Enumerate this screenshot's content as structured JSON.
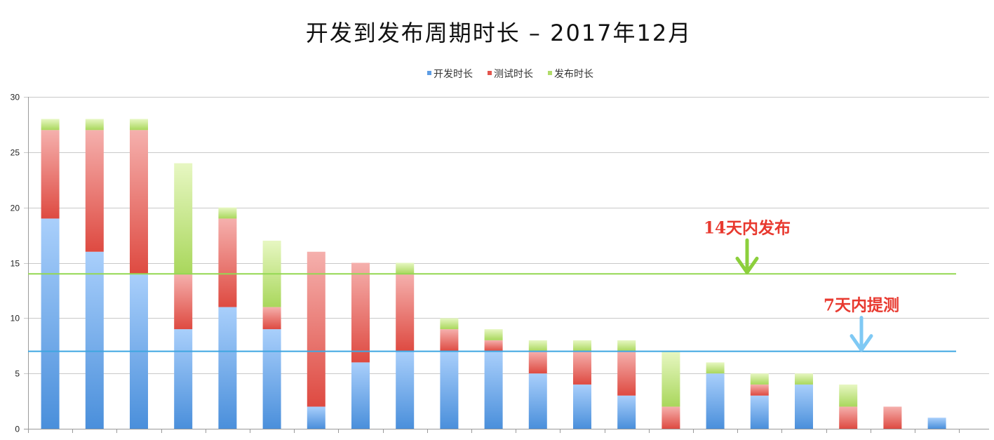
{
  "chart_data": {
    "type": "bar",
    "stacked": true,
    "title": "开发到发布周期时长 – 2017年12月",
    "legend_position": "top-center",
    "grid": true,
    "ylim": [
      0,
      30
    ],
    "yticks": [
      0,
      5,
      10,
      15,
      20,
      25,
      30
    ],
    "series": [
      {
        "name": "开发时长",
        "values": [
          19,
          16,
          14,
          9,
          11,
          9,
          2,
          6,
          7,
          7,
          7,
          5,
          4,
          3,
          0,
          5,
          3,
          4,
          0,
          0,
          1
        ],
        "color": "#5d9de4",
        "gradient": [
          "#a9cffb",
          "#4a8fdb"
        ]
      },
      {
        "name": "测试时长",
        "values": [
          8,
          11,
          13,
          5,
          8,
          2,
          14,
          9,
          7,
          2,
          1,
          2,
          3,
          4,
          2,
          0,
          1,
          0,
          2,
          2,
          0
        ],
        "color": "#e3554d",
        "gradient": [
          "#f5b0ad",
          "#de4a41"
        ]
      },
      {
        "name": "发布时长",
        "values": [
          1,
          1,
          1,
          10,
          1,
          6,
          0,
          0,
          1,
          1,
          1,
          1,
          1,
          1,
          5,
          1,
          1,
          1,
          2,
          0,
          0
        ],
        "color": "#b1dc6a",
        "gradient": [
          "#e7f7c2",
          "#a9d75c"
        ]
      }
    ],
    "reference_lines": [
      {
        "value": 14,
        "color": "#94d852",
        "annotation": "14天内发布",
        "annotation_color": "#e8392f",
        "arrow_color": "#8ccf3c"
      },
      {
        "value": 7,
        "color": "#3ea6e2",
        "annotation": "7天内提测",
        "annotation_color": "#e8392f",
        "arrow_color": "#7fc9f4"
      }
    ]
  }
}
